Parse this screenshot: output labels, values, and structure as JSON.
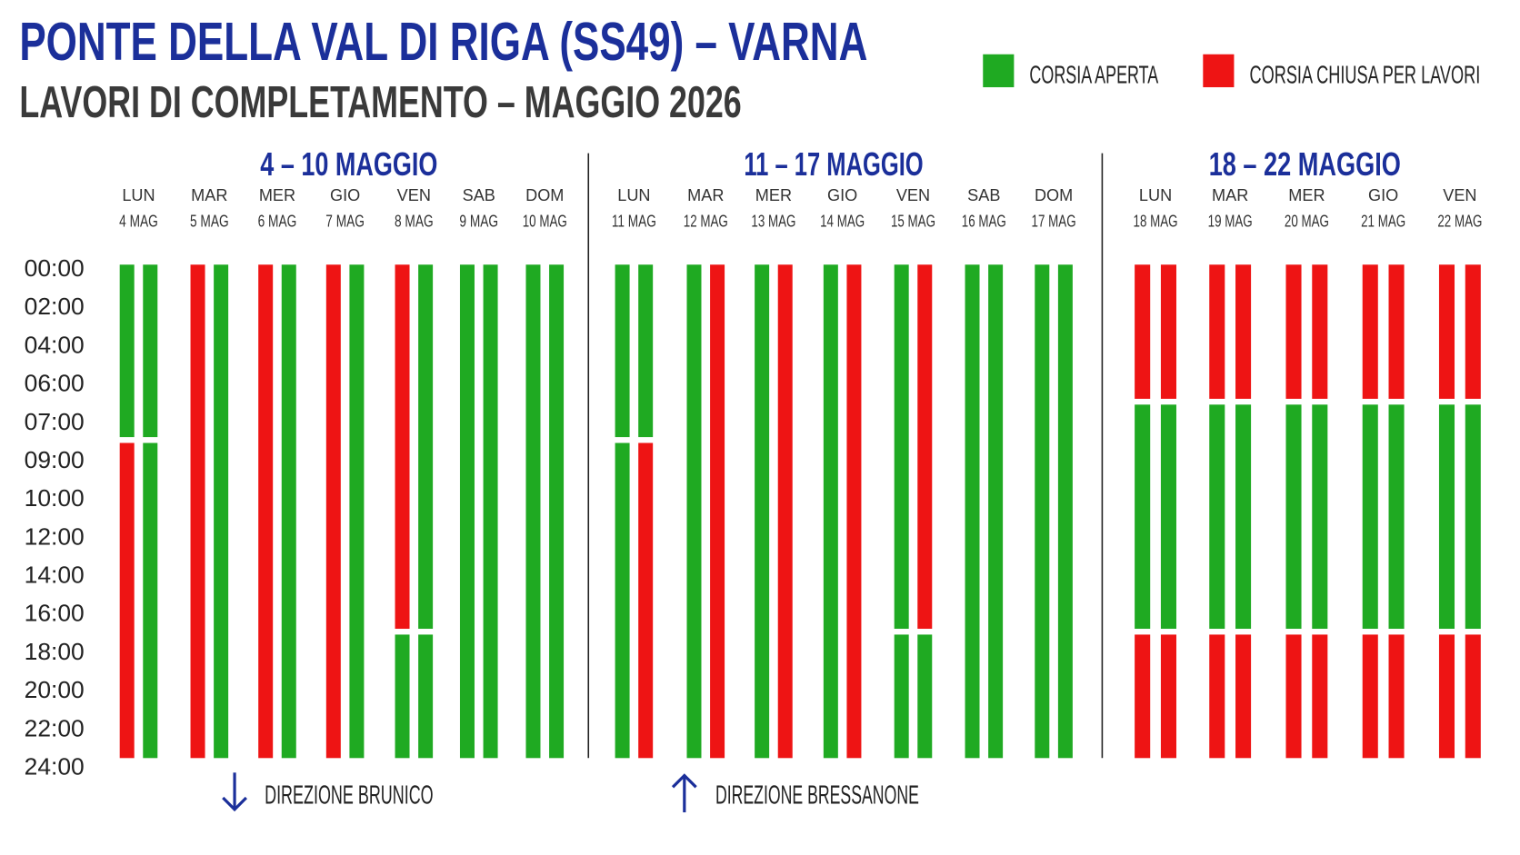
{
  "header": {
    "title": "PONTE DELLA VAL DI RIGA (SS49) – VARNA",
    "subtitle": "LAVORI DI COMPLETAMENTO – MAGGIO 2026"
  },
  "legend": {
    "open_label": "CORSIA APERTA",
    "closed_label": "CORSIA CHIUSA PER LAVORI"
  },
  "colors": {
    "open": "#1faa22",
    "closed": "#ee1414",
    "accent": "#1b2f9a",
    "text": "#3a3a3a"
  },
  "directions": {
    "down_label": "DIREZIONE BRUNICO",
    "up_label": "DIREZIONE BRESSANONE",
    "down_icon": "arrow-down-icon",
    "up_icon": "arrow-up-icon"
  },
  "chart_data": {
    "type": "timeline",
    "title": "PONTE DELLA VAL DI RIGA (SS49) – VARNA",
    "y_ticks": [
      "00:00",
      "02:00",
      "04:00",
      "06:00",
      "07:00",
      "09:00",
      "10:00",
      "12:00",
      "14:00",
      "16:00",
      "18:00",
      "20:00",
      "22:00",
      "24:00"
    ],
    "y_tick_hours": [
      0,
      2,
      4,
      6,
      7,
      9,
      10,
      12,
      14,
      16,
      18,
      20,
      22,
      24
    ],
    "highlighted_ticks": [
      "07:00",
      "09:00",
      "18:00"
    ],
    "weeks": [
      {
        "label": "4 – 10 MAGGIO",
        "days": [
          {
            "day": "LUN",
            "date": "4 MAG",
            "lanes": [
              [
                [
                  0,
                  9,
                  "open"
                ],
                [
                  9,
                  24,
                  "closed"
                ]
              ],
              [
                [
                  0,
                  9,
                  "open"
                ],
                [
                  9,
                  24,
                  "open"
                ]
              ]
            ]
          },
          {
            "day": "MAR",
            "date": "5 MAG",
            "lanes": [
              [
                [
                  0,
                  24,
                  "closed"
                ]
              ],
              [
                [
                  0,
                  24,
                  "open"
                ]
              ]
            ]
          },
          {
            "day": "MER",
            "date": "6 MAG",
            "lanes": [
              [
                [
                  0,
                  24,
                  "closed"
                ]
              ],
              [
                [
                  0,
                  24,
                  "open"
                ]
              ]
            ]
          },
          {
            "day": "GIO",
            "date": "7 MAG",
            "lanes": [
              [
                [
                  0,
                  24,
                  "closed"
                ]
              ],
              [
                [
                  0,
                  24,
                  "open"
                ]
              ]
            ]
          },
          {
            "day": "VEN",
            "date": "8 MAG",
            "lanes": [
              [
                [
                  0,
                  18,
                  "closed"
                ],
                [
                  18,
                  24,
                  "open"
                ]
              ],
              [
                [
                  0,
                  18,
                  "open"
                ],
                [
                  18,
                  24,
                  "open"
                ]
              ]
            ]
          },
          {
            "day": "SAB",
            "date": "9 MAG",
            "lanes": [
              [
                [
                  0,
                  24,
                  "open"
                ]
              ],
              [
                [
                  0,
                  24,
                  "open"
                ]
              ]
            ]
          },
          {
            "day": "DOM",
            "date": "10 MAG",
            "lanes": [
              [
                [
                  0,
                  24,
                  "open"
                ]
              ],
              [
                [
                  0,
                  24,
                  "open"
                ]
              ]
            ]
          }
        ]
      },
      {
        "label": "11 – 17 MAGGIO",
        "days": [
          {
            "day": "LUN",
            "date": "11 MAG",
            "lanes": [
              [
                [
                  0,
                  9,
                  "open"
                ],
                [
                  9,
                  24,
                  "open"
                ]
              ],
              [
                [
                  0,
                  9,
                  "open"
                ],
                [
                  9,
                  24,
                  "closed"
                ]
              ]
            ]
          },
          {
            "day": "MAR",
            "date": "12 MAG",
            "lanes": [
              [
                [
                  0,
                  24,
                  "open"
                ]
              ],
              [
                [
                  0,
                  24,
                  "closed"
                ]
              ]
            ]
          },
          {
            "day": "MER",
            "date": "13 MAG",
            "lanes": [
              [
                [
                  0,
                  24,
                  "open"
                ]
              ],
              [
                [
                  0,
                  24,
                  "closed"
                ]
              ]
            ]
          },
          {
            "day": "GIO",
            "date": "14 MAG",
            "lanes": [
              [
                [
                  0,
                  24,
                  "open"
                ]
              ],
              [
                [
                  0,
                  24,
                  "closed"
                ]
              ]
            ]
          },
          {
            "day": "VEN",
            "date": "15 MAG",
            "lanes": [
              [
                [
                  0,
                  18,
                  "open"
                ],
                [
                  18,
                  24,
                  "open"
                ]
              ],
              [
                [
                  0,
                  18,
                  "closed"
                ],
                [
                  18,
                  24,
                  "open"
                ]
              ]
            ]
          },
          {
            "day": "SAB",
            "date": "16 MAG",
            "lanes": [
              [
                [
                  0,
                  24,
                  "open"
                ]
              ],
              [
                [
                  0,
                  24,
                  "open"
                ]
              ]
            ]
          },
          {
            "day": "DOM",
            "date": "17 MAG",
            "lanes": [
              [
                [
                  0,
                  24,
                  "open"
                ]
              ],
              [
                [
                  0,
                  24,
                  "open"
                ]
              ]
            ]
          }
        ]
      },
      {
        "label": "18 – 22 MAGGIO",
        "days": [
          {
            "day": "LUN",
            "date": "18 MAG",
            "lanes": [
              [
                [
                  0,
                  7,
                  "closed"
                ],
                [
                  7,
                  18,
                  "open"
                ],
                [
                  18,
                  24,
                  "closed"
                ]
              ],
              [
                [
                  0,
                  7,
                  "closed"
                ],
                [
                  7,
                  18,
                  "open"
                ],
                [
                  18,
                  24,
                  "closed"
                ]
              ]
            ]
          },
          {
            "day": "MAR",
            "date": "19 MAG",
            "lanes": [
              [
                [
                  0,
                  7,
                  "closed"
                ],
                [
                  7,
                  18,
                  "open"
                ],
                [
                  18,
                  24,
                  "closed"
                ]
              ],
              [
                [
                  0,
                  7,
                  "closed"
                ],
                [
                  7,
                  18,
                  "open"
                ],
                [
                  18,
                  24,
                  "closed"
                ]
              ]
            ]
          },
          {
            "day": "MER",
            "date": "20 MAG",
            "lanes": [
              [
                [
                  0,
                  7,
                  "closed"
                ],
                [
                  7,
                  18,
                  "open"
                ],
                [
                  18,
                  24,
                  "closed"
                ]
              ],
              [
                [
                  0,
                  7,
                  "closed"
                ],
                [
                  7,
                  18,
                  "open"
                ],
                [
                  18,
                  24,
                  "closed"
                ]
              ]
            ]
          },
          {
            "day": "GIO",
            "date": "21 MAG",
            "lanes": [
              [
                [
                  0,
                  7,
                  "closed"
                ],
                [
                  7,
                  18,
                  "open"
                ],
                [
                  18,
                  24,
                  "closed"
                ]
              ],
              [
                [
                  0,
                  7,
                  "closed"
                ],
                [
                  7,
                  18,
                  "open"
                ],
                [
                  18,
                  24,
                  "closed"
                ]
              ]
            ]
          },
          {
            "day": "VEN",
            "date": "22 MAG",
            "lanes": [
              [
                [
                  0,
                  7,
                  "closed"
                ],
                [
                  7,
                  18,
                  "open"
                ],
                [
                  18,
                  24,
                  "closed"
                ]
              ],
              [
                [
                  0,
                  7,
                  "closed"
                ],
                [
                  7,
                  18,
                  "open"
                ],
                [
                  18,
                  24,
                  "closed"
                ]
              ]
            ]
          }
        ]
      }
    ]
  }
}
